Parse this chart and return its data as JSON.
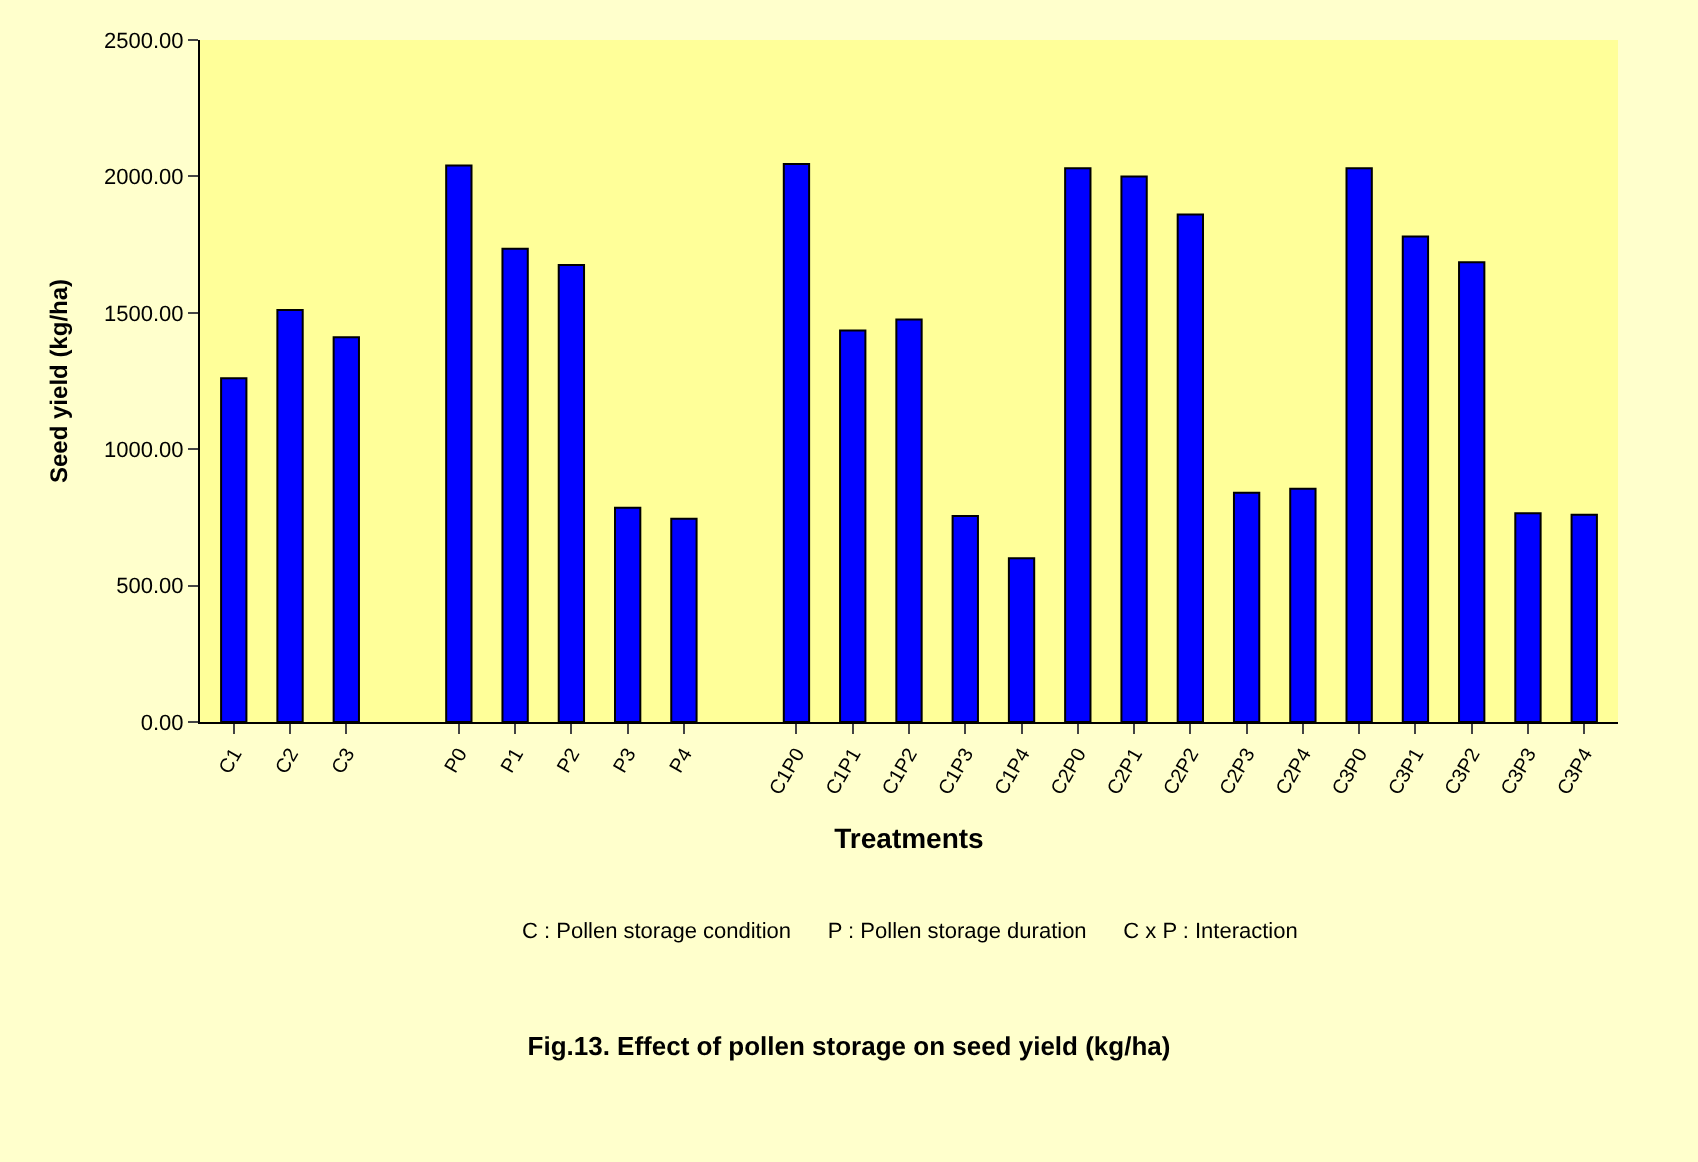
{
  "chart_data": {
    "type": "bar",
    "title": "Fig.13. Effect of pollen storage on seed yield (kg/ha)",
    "xlabel": "Treatments",
    "ylabel": "Seed yield (kg/ha)",
    "categories": [
      "C1",
      "C2",
      "C3",
      null,
      "P0",
      "P1",
      "P2",
      "P3",
      "P4",
      null,
      "C1P0",
      "C1P1",
      "C1P2",
      "C1P3",
      "C1P4",
      "C2P0",
      "C2P1",
      "C2P2",
      "C2P3",
      "C2P4",
      "C3P0",
      "C3P1",
      "C3P2",
      "C3P3",
      "C3P4"
    ],
    "values": [
      1260,
      1510,
      1410,
      null,
      2040,
      1735,
      1675,
      785,
      745,
      null,
      2045,
      1435,
      1475,
      755,
      600,
      2030,
      2000,
      1860,
      840,
      855,
      2030,
      1780,
      1685,
      765,
      760
    ],
    "color": "#0000ff",
    "ylim": [
      0,
      2500
    ],
    "yticks": [
      {
        "value": 0,
        "label": "0.00"
      },
      {
        "value": 500,
        "label": "500.00"
      },
      {
        "value": 1000,
        "label": "1000.00"
      },
      {
        "value": 1500,
        "label": "1500.00"
      },
      {
        "value": 2000,
        "label": "2000.00"
      },
      {
        "value": 2500,
        "label": "2500.00"
      }
    ],
    "grid": false,
    "legend": false,
    "annotations": [
      "C : Pollen storage condition      P : Pollen storage duration      C x P : Interaction"
    ]
  }
}
